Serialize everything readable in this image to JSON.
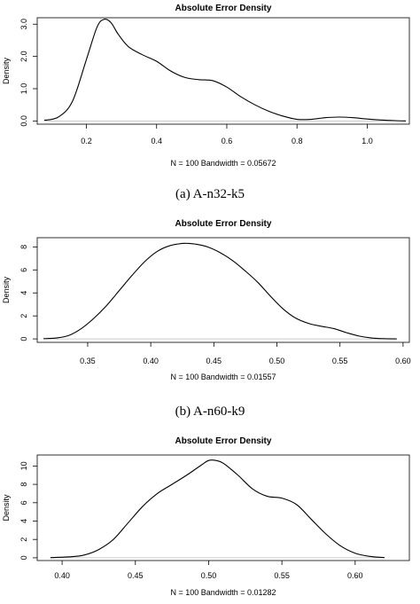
{
  "chart_data": [
    {
      "type": "line",
      "title": "Absolute Error Density",
      "xlabel": "N = 100   Bandwidth = 0.05672",
      "ylabel": "Density",
      "caption": "(a) A-n32-k5",
      "xlim": [
        0.06,
        1.12
      ],
      "ylim": [
        -0.1,
        3.2
      ],
      "x_ticks": [
        0.2,
        0.4,
        0.6,
        0.8,
        1.0
      ],
      "x_tick_labels": [
        "0.2",
        "0.4",
        "0.6",
        "0.8",
        "1.0"
      ],
      "y_ticks": [
        0.0,
        1.0,
        2.0,
        3.0
      ],
      "y_tick_labels": [
        "0.0",
        "1.0",
        "2.0",
        "3.0"
      ],
      "baseline": 0,
      "series": [
        {
          "x": [
            0.08,
            0.12,
            0.16,
            0.2,
            0.23,
            0.25,
            0.27,
            0.29,
            0.32,
            0.36,
            0.4,
            0.44,
            0.48,
            0.52,
            0.56,
            0.6,
            0.64,
            0.68,
            0.72,
            0.76,
            0.8,
            0.84,
            0.88,
            0.92,
            0.96,
            1.0,
            1.04,
            1.08,
            1.11
          ],
          "y": [
            0.02,
            0.12,
            0.6,
            1.9,
            2.9,
            3.15,
            3.05,
            2.7,
            2.3,
            2.05,
            1.85,
            1.55,
            1.35,
            1.28,
            1.25,
            1.05,
            0.75,
            0.5,
            0.3,
            0.15,
            0.05,
            0.05,
            0.1,
            0.12,
            0.1,
            0.06,
            0.03,
            0.01,
            0.0
          ]
        }
      ]
    },
    {
      "type": "line",
      "title": "Absolute Error Density",
      "xlabel": "N = 100   Bandwidth = 0.01557",
      "ylabel": "Density",
      "caption": "(b) A-n60-k9",
      "xlim": [
        0.31,
        0.605
      ],
      "ylim": [
        -0.3,
        8.8
      ],
      "x_ticks": [
        0.35,
        0.4,
        0.45,
        0.5,
        0.55,
        0.6
      ],
      "x_tick_labels": [
        "0.35",
        "0.40",
        "0.45",
        "0.50",
        "0.55",
        "0.60"
      ],
      "y_ticks": [
        0,
        2,
        4,
        6,
        8
      ],
      "y_tick_labels": [
        "0",
        "2",
        "4",
        "6",
        "8"
      ],
      "baseline": 0,
      "series": [
        {
          "x": [
            0.315,
            0.325,
            0.335,
            0.345,
            0.355,
            0.365,
            0.375,
            0.385,
            0.395,
            0.405,
            0.415,
            0.425,
            0.43,
            0.435,
            0.445,
            0.455,
            0.465,
            0.475,
            0.485,
            0.495,
            0.505,
            0.515,
            0.525,
            0.535,
            0.545,
            0.555,
            0.565,
            0.575,
            0.585,
            0.595
          ],
          "y": [
            0.02,
            0.08,
            0.3,
            0.9,
            1.8,
            2.9,
            4.2,
            5.5,
            6.7,
            7.6,
            8.1,
            8.3,
            8.3,
            8.25,
            8.0,
            7.5,
            6.8,
            5.9,
            4.9,
            3.7,
            2.6,
            1.8,
            1.35,
            1.1,
            0.9,
            0.55,
            0.25,
            0.08,
            0.02,
            0.0
          ]
        }
      ]
    },
    {
      "type": "line",
      "title": "Absolute Error Density",
      "xlabel": "N = 100   Bandwidth = 0.01282",
      "ylabel": "Density",
      "caption": "",
      "xlim": [
        0.383,
        0.637
      ],
      "ylim": [
        -0.3,
        11.2
      ],
      "x_ticks": [
        0.4,
        0.45,
        0.5,
        0.55,
        0.6
      ],
      "x_tick_labels": [
        "0.40",
        "0.45",
        "0.50",
        "0.55",
        "0.60"
      ],
      "y_ticks": [
        0,
        2,
        4,
        6,
        8,
        10
      ],
      "y_tick_labels": [
        "0",
        "2",
        "4",
        "6",
        "8",
        "10"
      ],
      "baseline": 0,
      "series": [
        {
          "x": [
            0.392,
            0.405,
            0.415,
            0.425,
            0.435,
            0.445,
            0.455,
            0.465,
            0.475,
            0.485,
            0.495,
            0.5,
            0.505,
            0.51,
            0.52,
            0.53,
            0.54,
            0.55,
            0.56,
            0.57,
            0.58,
            0.59,
            0.6,
            0.61,
            0.62
          ],
          "y": [
            0.02,
            0.1,
            0.3,
            0.9,
            2.0,
            3.8,
            5.6,
            7.0,
            8.0,
            9.0,
            10.1,
            10.6,
            10.6,
            10.3,
            9.0,
            7.5,
            6.7,
            6.5,
            5.8,
            4.2,
            2.6,
            1.3,
            0.5,
            0.15,
            0.02
          ]
        }
      ]
    }
  ]
}
